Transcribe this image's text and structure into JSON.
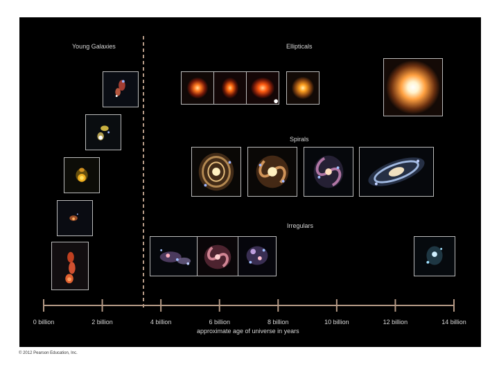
{
  "section_labels": {
    "young": "Young Galaxies",
    "ellipticals": "Ellipticals",
    "spirals": "Spirals",
    "irregulars": "Irregulars"
  },
  "axis": {
    "ticks": [
      "0 billion",
      "2 billion",
      "4 billion",
      "6 billion",
      "8 billion",
      "10 billion",
      "12 billion",
      "14 billion"
    ],
    "title": "approximate age of universe in years",
    "line_color": "#b59a86",
    "divider_color": "#b59a86"
  },
  "copyright": "© 2012 Pearson Education, Inc."
}
